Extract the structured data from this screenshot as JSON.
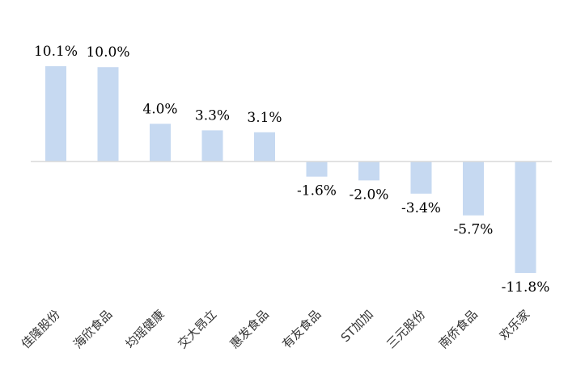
{
  "chart_data": {
    "type": "bar",
    "title": "",
    "xlabel": "",
    "ylabel": "",
    "categories": [
      "佳隆股份",
      "海欣食品",
      "均瑶健康",
      "交大昂立",
      "惠发食品",
      "有友食品",
      "ST加加",
      "三元股份",
      "南侨食品",
      "欢乐家"
    ],
    "values": [
      10.1,
      10.0,
      4.0,
      3.3,
      3.1,
      -1.6,
      -2.0,
      -3.4,
      -5.7,
      -11.8
    ],
    "value_labels": [
      "10.1%",
      "10.0%",
      "4.0%",
      "3.3%",
      "3.1%",
      "-1.6%",
      "-2.0%",
      "-3.4%",
      "-5.7%",
      "-11.8%"
    ],
    "ylim": [
      -11.8,
      10.1
    ],
    "grid": false,
    "legend": "none",
    "colors": {
      "bar": "#c6d9f1",
      "axis": "#d9d9d9"
    }
  }
}
